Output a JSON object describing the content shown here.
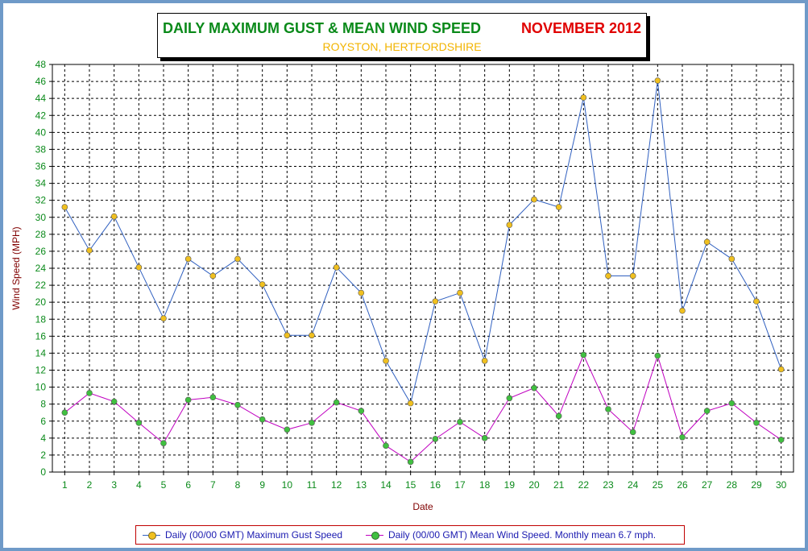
{
  "header": {
    "title": "DAILY MAXIMUM GUST & MEAN WIND SPEED",
    "month": "NOVEMBER 2012",
    "location": "ROYSTON, HERTFORDSHIRE"
  },
  "chart_data": {
    "type": "line",
    "xlabel": "Date",
    "ylabel": "Wind Speed (MPH)",
    "ylim": [
      0,
      48
    ],
    "ytick_step": 2,
    "grid": true,
    "legend_position": "bottom",
    "x": [
      1,
      2,
      3,
      4,
      5,
      6,
      7,
      8,
      9,
      10,
      11,
      12,
      13,
      14,
      15,
      16,
      17,
      18,
      19,
      20,
      21,
      22,
      23,
      24,
      25,
      26,
      27,
      28,
      29,
      30
    ],
    "series": [
      {
        "name": "Daily (00/00 GMT) Maximum Gust Speed",
        "line_color": "#3060c0",
        "marker_color": "#f0c020",
        "values": [
          31.2,
          26.1,
          30.1,
          24.1,
          18.1,
          25.1,
          23.1,
          25.1,
          22.1,
          16.1,
          16.1,
          24.1,
          21.1,
          13.1,
          8.1,
          20.1,
          21.1,
          13.1,
          29.1,
          32.1,
          31.2,
          44.1,
          23.1,
          23.1,
          46.1,
          19.0,
          27.1,
          25.1,
          20.1,
          12.1
        ]
      },
      {
        "name": "Daily (00/00 GMT) Mean Wind Speed. Monthly mean 6.7 mph.",
        "line_color": "#c000c0",
        "marker_color": "#40c040",
        "values": [
          7.0,
          9.3,
          8.3,
          5.8,
          3.4,
          8.5,
          8.8,
          7.9,
          6.2,
          5.0,
          5.8,
          8.2,
          7.2,
          3.1,
          1.2,
          3.9,
          5.9,
          4.0,
          8.7,
          9.9,
          6.6,
          13.8,
          7.4,
          4.7,
          13.7,
          4.1,
          7.2,
          8.1,
          5.8,
          3.8
        ]
      }
    ]
  }
}
